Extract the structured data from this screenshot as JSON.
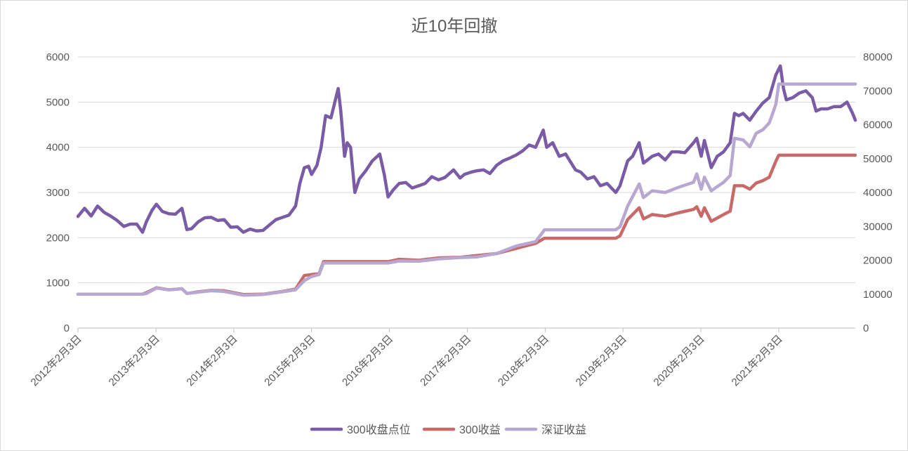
{
  "chart_data": {
    "type": "line",
    "title": "近10年回撤",
    "xlabel": "",
    "ylabel": "",
    "y_left_lim": [
      0,
      6000
    ],
    "y_right_lim": [
      0,
      80000
    ],
    "y_left_ticks": [
      "0",
      "1000",
      "2000",
      "3000",
      "4000",
      "5000",
      "6000"
    ],
    "y_right_ticks": [
      "0",
      "10000",
      "20000",
      "30000",
      "40000",
      "50000",
      "60000",
      "70000",
      "80000"
    ],
    "x_range": [
      "2012-02-03",
      "2022-01-28"
    ],
    "x_ticks": [
      {
        "date": "2012-02-03",
        "label": "2012年2月3日"
      },
      {
        "date": "2013-02-03",
        "label": "2013年2月3日"
      },
      {
        "date": "2014-02-03",
        "label": "2014年2月3日"
      },
      {
        "date": "2015-02-03",
        "label": "2015年2月3日"
      },
      {
        "date": "2016-02-03",
        "label": "2016年2月3日"
      },
      {
        "date": "2017-02-03",
        "label": "2017年2月3日"
      },
      {
        "date": "2018-02-03",
        "label": "2018年2月3日"
      },
      {
        "date": "2019-02-03",
        "label": "2019年2月3日"
      },
      {
        "date": "2020-02-03",
        "label": "2020年2月3日"
      },
      {
        "date": "2021-02-03",
        "label": "2021年2月3日"
      }
    ],
    "grid": true,
    "legend": "bottom",
    "series": [
      {
        "name": "300收盘点位",
        "axis": "left",
        "color": "#7a5ca6",
        "points": [
          [
            "2012-02-03",
            2470
          ],
          [
            "2012-03-05",
            2650
          ],
          [
            "2012-04-05",
            2480
          ],
          [
            "2012-05-05",
            2700
          ],
          [
            "2012-06-05",
            2560
          ],
          [
            "2012-07-05",
            2480
          ],
          [
            "2012-08-05",
            2380
          ],
          [
            "2012-09-05",
            2250
          ],
          [
            "2012-10-05",
            2300
          ],
          [
            "2012-11-05",
            2300
          ],
          [
            "2012-12-02",
            2120
          ],
          [
            "2012-12-20",
            2350
          ],
          [
            "2013-01-15",
            2600
          ],
          [
            "2013-02-05",
            2740
          ],
          [
            "2013-03-05",
            2580
          ],
          [
            "2013-04-05",
            2530
          ],
          [
            "2013-05-05",
            2520
          ],
          [
            "2013-06-05",
            2650
          ],
          [
            "2013-06-28",
            2180
          ],
          [
            "2013-07-20",
            2200
          ],
          [
            "2013-08-20",
            2350
          ],
          [
            "2013-09-20",
            2440
          ],
          [
            "2013-10-20",
            2450
          ],
          [
            "2013-11-20",
            2380
          ],
          [
            "2013-12-20",
            2400
          ],
          [
            "2014-01-20",
            2230
          ],
          [
            "2014-02-20",
            2240
          ],
          [
            "2014-03-20",
            2120
          ],
          [
            "2014-04-20",
            2190
          ],
          [
            "2014-05-20",
            2150
          ],
          [
            "2014-06-20",
            2160
          ],
          [
            "2014-07-20",
            2280
          ],
          [
            "2014-08-20",
            2400
          ],
          [
            "2014-09-20",
            2450
          ],
          [
            "2014-10-20",
            2500
          ],
          [
            "2014-11-20",
            2700
          ],
          [
            "2014-12-10",
            3200
          ],
          [
            "2014-12-31",
            3550
          ],
          [
            "2015-01-20",
            3580
          ],
          [
            "2015-02-03",
            3400
          ],
          [
            "2015-02-28",
            3600
          ],
          [
            "2015-03-20",
            4000
          ],
          [
            "2015-04-10",
            4700
          ],
          [
            "2015-05-05",
            4650
          ],
          [
            "2015-06-08",
            5300
          ],
          [
            "2015-06-20",
            4800
          ],
          [
            "2015-07-08",
            3800
          ],
          [
            "2015-07-20",
            4100
          ],
          [
            "2015-08-05",
            4000
          ],
          [
            "2015-08-25",
            3000
          ],
          [
            "2015-09-15",
            3300
          ],
          [
            "2015-10-15",
            3480
          ],
          [
            "2015-11-15",
            3700
          ],
          [
            "2015-12-20",
            3850
          ],
          [
            "2016-01-10",
            3400
          ],
          [
            "2016-01-28",
            2900
          ],
          [
            "2016-02-20",
            3050
          ],
          [
            "2016-03-20",
            3200
          ],
          [
            "2016-04-20",
            3220
          ],
          [
            "2016-05-20",
            3100
          ],
          [
            "2016-06-20",
            3150
          ],
          [
            "2016-07-20",
            3200
          ],
          [
            "2016-08-20",
            3350
          ],
          [
            "2016-09-20",
            3280
          ],
          [
            "2016-10-20",
            3330
          ],
          [
            "2016-11-30",
            3500
          ],
          [
            "2016-12-31",
            3320
          ],
          [
            "2017-01-20",
            3400
          ],
          [
            "2017-02-20",
            3450
          ],
          [
            "2017-03-20",
            3480
          ],
          [
            "2017-04-20",
            3500
          ],
          [
            "2017-05-20",
            3420
          ],
          [
            "2017-06-20",
            3600
          ],
          [
            "2017-07-20",
            3700
          ],
          [
            "2017-08-20",
            3760
          ],
          [
            "2017-09-20",
            3830
          ],
          [
            "2017-10-20",
            3920
          ],
          [
            "2017-11-20",
            4050
          ],
          [
            "2017-12-20",
            4000
          ],
          [
            "2018-01-25",
            4380
          ],
          [
            "2018-02-10",
            4000
          ],
          [
            "2018-03-10",
            4100
          ],
          [
            "2018-04-10",
            3800
          ],
          [
            "2018-05-10",
            3850
          ],
          [
            "2018-06-25",
            3500
          ],
          [
            "2018-07-20",
            3450
          ],
          [
            "2018-08-20",
            3300
          ],
          [
            "2018-09-20",
            3350
          ],
          [
            "2018-10-20",
            3150
          ],
          [
            "2018-11-20",
            3200
          ],
          [
            "2018-12-31",
            3000
          ],
          [
            "2019-01-20",
            3150
          ],
          [
            "2019-02-25",
            3700
          ],
          [
            "2019-03-20",
            3800
          ],
          [
            "2019-04-20",
            4100
          ],
          [
            "2019-05-10",
            3650
          ],
          [
            "2019-06-20",
            3800
          ],
          [
            "2019-07-20",
            3850
          ],
          [
            "2019-08-20",
            3720
          ],
          [
            "2019-09-20",
            3900
          ],
          [
            "2019-10-20",
            3900
          ],
          [
            "2019-11-20",
            3880
          ],
          [
            "2019-12-31",
            4100
          ],
          [
            "2020-01-15",
            4200
          ],
          [
            "2020-02-05",
            3800
          ],
          [
            "2020-02-20",
            4150
          ],
          [
            "2020-03-23",
            3550
          ],
          [
            "2020-04-20",
            3800
          ],
          [
            "2020-05-20",
            3900
          ],
          [
            "2020-06-20",
            4100
          ],
          [
            "2020-07-10",
            4750
          ],
          [
            "2020-07-30",
            4700
          ],
          [
            "2020-08-20",
            4750
          ],
          [
            "2020-09-20",
            4600
          ],
          [
            "2020-10-20",
            4800
          ],
          [
            "2020-11-20",
            4980
          ],
          [
            "2020-12-20",
            5100
          ],
          [
            "2021-01-20",
            5600
          ],
          [
            "2021-02-10",
            5800
          ],
          [
            "2021-02-25",
            5300
          ],
          [
            "2021-03-10",
            5050
          ],
          [
            "2021-04-10",
            5100
          ],
          [
            "2021-05-10",
            5200
          ],
          [
            "2021-06-10",
            5250
          ],
          [
            "2021-07-10",
            5100
          ],
          [
            "2021-07-28",
            4800
          ],
          [
            "2021-08-20",
            4850
          ],
          [
            "2021-09-20",
            4850
          ],
          [
            "2021-10-20",
            4900
          ],
          [
            "2021-11-20",
            4900
          ],
          [
            "2021-12-20",
            5000
          ],
          [
            "2022-01-15",
            4750
          ],
          [
            "2022-01-28",
            4600
          ]
        ]
      },
      {
        "name": "300收益",
        "axis": "right",
        "color": "#c96a6a",
        "points": [
          [
            "2012-02-03",
            10000
          ],
          [
            "2012-12-01",
            10000
          ],
          [
            "2012-12-20",
            10400
          ],
          [
            "2013-02-05",
            11900
          ],
          [
            "2013-04-05",
            11300
          ],
          [
            "2013-06-05",
            11600
          ],
          [
            "2013-06-28",
            10200
          ],
          [
            "2013-08-20",
            10700
          ],
          [
            "2013-10-20",
            11100
          ],
          [
            "2013-12-20",
            11000
          ],
          [
            "2014-03-20",
            9900
          ],
          [
            "2014-06-20",
            10000
          ],
          [
            "2014-09-20",
            10800
          ],
          [
            "2014-11-20",
            11500
          ],
          [
            "2014-12-31",
            15500
          ],
          [
            "2015-02-03",
            15800
          ],
          [
            "2015-03-10",
            16000
          ],
          [
            "2015-03-31",
            19600
          ],
          [
            "2016-01-28",
            19600
          ],
          [
            "2016-03-20",
            20300
          ],
          [
            "2016-06-20",
            20000
          ],
          [
            "2016-09-20",
            20700
          ],
          [
            "2016-12-31",
            20900
          ],
          [
            "2017-03-20",
            21400
          ],
          [
            "2017-06-20",
            22000
          ],
          [
            "2017-09-20",
            23500
          ],
          [
            "2017-12-20",
            25000
          ],
          [
            "2018-01-31",
            26500
          ],
          [
            "2018-12-31",
            26500
          ],
          [
            "2019-01-20",
            27200
          ],
          [
            "2019-02-25",
            32000
          ],
          [
            "2019-04-20",
            35500
          ],
          [
            "2019-05-10",
            32200
          ],
          [
            "2019-06-20",
            33500
          ],
          [
            "2019-08-20",
            33000
          ],
          [
            "2019-10-20",
            34000
          ],
          [
            "2019-12-31",
            35000
          ],
          [
            "2020-01-15",
            35800
          ],
          [
            "2020-02-05",
            33000
          ],
          [
            "2020-02-20",
            35500
          ],
          [
            "2020-03-23",
            31500
          ],
          [
            "2020-05-20",
            33500
          ],
          [
            "2020-06-20",
            34500
          ],
          [
            "2020-07-10",
            42000
          ],
          [
            "2020-08-20",
            42000
          ],
          [
            "2020-09-20",
            41000
          ],
          [
            "2020-10-20",
            42800
          ],
          [
            "2020-11-20",
            43500
          ],
          [
            "2020-12-20",
            44500
          ],
          [
            "2021-01-20",
            49200
          ],
          [
            "2021-02-03",
            51000
          ],
          [
            "2022-01-28",
            51000
          ]
        ]
      },
      {
        "name": "深证收益",
        "axis": "right",
        "color": "#b7a7d1",
        "points": [
          [
            "2012-02-03",
            10000
          ],
          [
            "2012-12-01",
            10000
          ],
          [
            "2012-12-20",
            10200
          ],
          [
            "2013-02-05",
            11800
          ],
          [
            "2013-04-05",
            11300
          ],
          [
            "2013-06-05",
            11600
          ],
          [
            "2013-06-28",
            10200
          ],
          [
            "2013-08-20",
            10600
          ],
          [
            "2013-10-20",
            11000
          ],
          [
            "2013-12-20",
            10800
          ],
          [
            "2014-03-20",
            9700
          ],
          [
            "2014-06-20",
            9900
          ],
          [
            "2014-09-20",
            10700
          ],
          [
            "2014-11-20",
            11300
          ],
          [
            "2014-12-31",
            14000
          ],
          [
            "2015-02-03",
            15200
          ],
          [
            "2015-03-10",
            15800
          ],
          [
            "2015-03-31",
            19200
          ],
          [
            "2016-01-28",
            19200
          ],
          [
            "2016-03-20",
            19800
          ],
          [
            "2016-06-20",
            19700
          ],
          [
            "2016-09-20",
            20400
          ],
          [
            "2016-12-31",
            20800
          ],
          [
            "2017-03-20",
            21000
          ],
          [
            "2017-06-20",
            22000
          ],
          [
            "2017-09-20",
            24200
          ],
          [
            "2017-12-20",
            25500
          ],
          [
            "2018-01-31",
            29000
          ],
          [
            "2018-12-31",
            29000
          ],
          [
            "2019-01-20",
            29900
          ],
          [
            "2019-02-25",
            36000
          ],
          [
            "2019-04-20",
            42500
          ],
          [
            "2019-05-10",
            38500
          ],
          [
            "2019-06-20",
            40500
          ],
          [
            "2019-08-20",
            40000
          ],
          [
            "2019-10-20",
            41500
          ],
          [
            "2019-12-31",
            43000
          ],
          [
            "2020-01-15",
            45500
          ],
          [
            "2020-02-05",
            41000
          ],
          [
            "2020-02-20",
            44500
          ],
          [
            "2020-03-23",
            40500
          ],
          [
            "2020-05-20",
            43000
          ],
          [
            "2020-06-20",
            45000
          ],
          [
            "2020-07-10",
            56000
          ],
          [
            "2020-08-20",
            55500
          ],
          [
            "2020-09-20",
            53500
          ],
          [
            "2020-10-20",
            57500
          ],
          [
            "2020-11-20",
            58500
          ],
          [
            "2020-12-20",
            60500
          ],
          [
            "2021-01-20",
            66000
          ],
          [
            "2021-02-03",
            72000
          ],
          [
            "2022-01-28",
            72000
          ]
        ]
      }
    ]
  }
}
